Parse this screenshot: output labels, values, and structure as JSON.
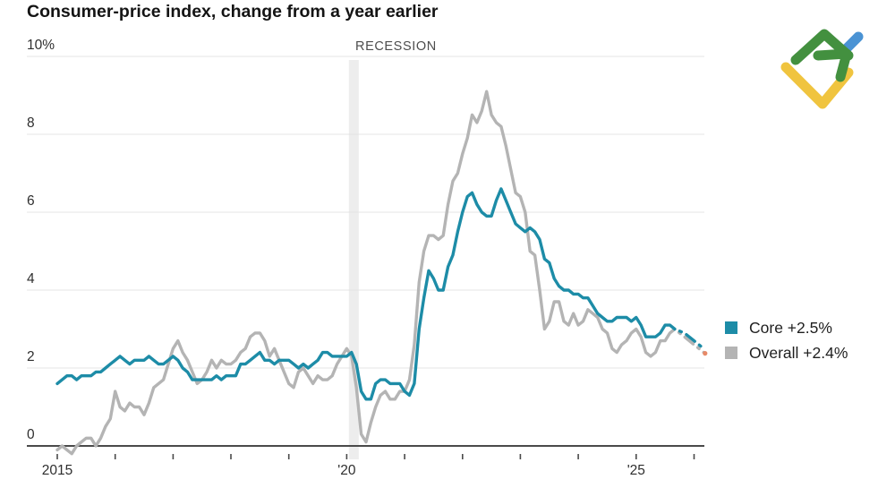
{
  "page": {
    "background": "#ffffff"
  },
  "colors": {
    "core_line": "#1d8ca7",
    "overall_line": "#b4b4b4",
    "gridline": "#e4e4e4",
    "axis_line": "#4a4a4a",
    "recession_band": "#ededed",
    "end_marker": "#e78a68",
    "text_dark": "#141414",
    "text_axis": "#2e2e2e"
  },
  "chart_data": {
    "type": "line",
    "title": "Consumer-price index, change from a year earlier",
    "frequency": "monthly",
    "x_start": "Jan 2015",
    "x_end_solid": "Sep 2025",
    "grid": "horizontal-only",
    "legend_position": "right",
    "y_axis": {
      "tick_labels": [
        "10%",
        "8",
        "6",
        "4",
        "2",
        "0"
      ],
      "tick_values": [
        10,
        8,
        6,
        4,
        2,
        0
      ],
      "ylim": [
        -0.4,
        10
      ]
    },
    "x_axis": {
      "minor_tick_year_indices": [
        0,
        1,
        2,
        3,
        4,
        5,
        6,
        7,
        8,
        9,
        10,
        11
      ],
      "labeled_ticks": [
        {
          "label": "2015",
          "year_index": 0
        },
        {
          "label": "'20",
          "year_index": 5
        },
        {
          "label": "'25",
          "year_index": 10
        }
      ]
    },
    "annotations": [
      {
        "text": "RECESSION",
        "type": "vertical-band",
        "x_start": "Feb 2020",
        "x_end": "Apr 2020"
      }
    ],
    "series": [
      {
        "name": "Core",
        "legend": "Core +2.5%",
        "latest_value": 2.5,
        "color": "#1d8ca7",
        "values": [
          1.6,
          1.7,
          1.8,
          1.8,
          1.7,
          1.8,
          1.8,
          1.8,
          1.9,
          1.9,
          2.0,
          2.1,
          2.2,
          2.3,
          2.2,
          2.1,
          2.2,
          2.2,
          2.2,
          2.3,
          2.2,
          2.1,
          2.1,
          2.2,
          2.3,
          2.2,
          2.0,
          1.9,
          1.7,
          1.7,
          1.7,
          1.7,
          1.7,
          1.8,
          1.7,
          1.8,
          1.8,
          1.8,
          2.1,
          2.1,
          2.2,
          2.3,
          2.4,
          2.2,
          2.2,
          2.1,
          2.2,
          2.2,
          2.2,
          2.1,
          2.0,
          2.1,
          2.0,
          2.1,
          2.2,
          2.4,
          2.4,
          2.3,
          2.3,
          2.3,
          2.3,
          2.4,
          2.1,
          1.4,
          1.2,
          1.2,
          1.6,
          1.7,
          1.7,
          1.6,
          1.6,
          1.6,
          1.4,
          1.3,
          1.6,
          3.0,
          3.8,
          4.5,
          4.3,
          4.0,
          4.0,
          4.6,
          4.9,
          5.5,
          6.0,
          6.4,
          6.5,
          6.2,
          6.0,
          5.9,
          5.9,
          6.3,
          6.6,
          6.3,
          6.0,
          5.7,
          5.6,
          5.5,
          5.6,
          5.5,
          5.3,
          4.8,
          4.7,
          4.3,
          4.1,
          4.0,
          4.0,
          3.9,
          3.9,
          3.8,
          3.8,
          3.6,
          3.4,
          3.3,
          3.2,
          3.2,
          3.3,
          3.3,
          3.3,
          3.2,
          3.3,
          3.1,
          2.8,
          2.8,
          2.8,
          2.9,
          3.1,
          3.1,
          3.0
        ],
        "forecast_dotted": [
          [
            128,
            3.0
          ],
          [
            130,
            2.9
          ],
          [
            132,
            2.7
          ],
          [
            134,
            2.5
          ]
        ]
      },
      {
        "name": "Overall",
        "legend": "Overall +2.4%",
        "latest_value": 2.4,
        "color": "#b4b4b4",
        "values": [
          -0.1,
          0.0,
          -0.1,
          -0.2,
          0.0,
          0.1,
          0.2,
          0.2,
          0.0,
          0.2,
          0.5,
          0.7,
          1.4,
          1.0,
          0.9,
          1.1,
          1.0,
          1.0,
          0.8,
          1.1,
          1.5,
          1.6,
          1.7,
          2.1,
          2.5,
          2.7,
          2.4,
          2.2,
          1.9,
          1.6,
          1.7,
          1.9,
          2.2,
          2.0,
          2.2,
          2.1,
          2.1,
          2.2,
          2.4,
          2.5,
          2.8,
          2.9,
          2.9,
          2.7,
          2.3,
          2.5,
          2.2,
          1.9,
          1.6,
          1.5,
          1.9,
          2.0,
          1.8,
          1.6,
          1.8,
          1.7,
          1.7,
          1.8,
          2.1,
          2.3,
          2.5,
          2.3,
          1.5,
          0.3,
          0.1,
          0.6,
          1.0,
          1.3,
          1.4,
          1.2,
          1.2,
          1.4,
          1.4,
          1.7,
          2.6,
          4.2,
          5.0,
          5.4,
          5.4,
          5.3,
          5.4,
          6.2,
          6.8,
          7.0,
          7.5,
          7.9,
          8.5,
          8.3,
          8.6,
          9.1,
          8.5,
          8.3,
          8.2,
          7.7,
          7.1,
          6.5,
          6.4,
          6.0,
          5.0,
          4.9,
          4.0,
          3.0,
          3.2,
          3.7,
          3.7,
          3.2,
          3.1,
          3.4,
          3.1,
          3.2,
          3.5,
          3.4,
          3.3,
          3.0,
          2.9,
          2.5,
          2.4,
          2.6,
          2.7,
          2.9,
          3.0,
          2.8,
          2.4,
          2.3,
          2.4,
          2.7,
          2.7,
          2.9,
          3.0
        ],
        "forecast_dotted": [
          [
            128,
            3.0
          ],
          [
            130,
            2.8
          ],
          [
            132,
            2.6
          ],
          [
            134,
            2.4
          ]
        ]
      }
    ]
  },
  "watermark": {
    "name": "litefinance-logo"
  }
}
